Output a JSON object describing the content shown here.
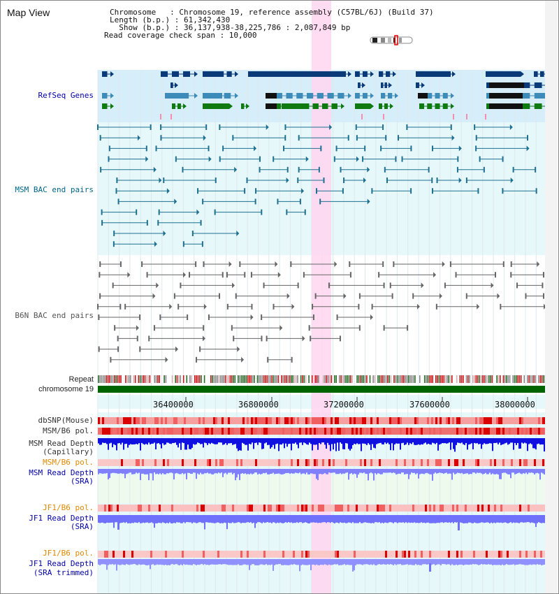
{
  "title": "Map View",
  "info": {
    "lines": [
      "Chromosome   : Chromosome 19, reference assembly (C57BL/6J) (Build 37)",
      "Length (b.p.) : 61,342,430",
      "  Show (b.p.) : 36,137,938-38,225,786 : 2,087,849 bp",
      "Read coverage check span : 10,000"
    ]
  },
  "tracks": {
    "refseq": "RefSeq Genes",
    "msm_bac": "MSM BAC end pairs",
    "b6n_bac": "B6N BAC end pairs",
    "repeat": "Repeat",
    "chromosome": "chromosome 19",
    "dbsnp": "dbSNP(Mouse)",
    "msm_pol_1": "MSM/B6 pol.",
    "msm_read_depth_cap": "MSM Read Depth",
    "msm_read_depth_cap_sub": "(Capillary)",
    "msm_pol_2": "MSM/B6 pol.",
    "msm_read_depth_sra": "MSM Read Depth",
    "msm_read_depth_sra_sub": "(SRA)",
    "jf1_pol_1": "JF1/B6 pol.",
    "jf1_read_depth_sra": "JF1 Read Depth",
    "jf1_read_depth_sra_sub": "(SRA)",
    "jf1_pol_2": "JF1/B6 pol.",
    "jf1_read_depth_trim": "JF1 Read Depth",
    "jf1_read_depth_trim_sub": "(SRA trimmed)"
  },
  "ruler": {
    "ticks": [
      "36400000",
      "36800000",
      "37200000",
      "37600000",
      "38000000"
    ]
  },
  "colors": {
    "label_black": "#222222",
    "label_navy": "#0000aa",
    "label_teal": "#006688",
    "label_gray": "#555555",
    "label_orange": "#e08800",
    "refseq_bg": "#d6eefa",
    "msm_bg": "#e6f8fa",
    "highlight": "#ffd6f0",
    "chromosome_band": "#006400",
    "gene_dark": "#0b3a78",
    "gene_mid": "#3d8bb8",
    "gene_green": "#0f7a10",
    "msm_bac": "#1e7090",
    "b6n_bac": "#666666",
    "snp": "#e84040",
    "depth_blue": "#1010e0",
    "depth_light": "#8080ff"
  }
}
